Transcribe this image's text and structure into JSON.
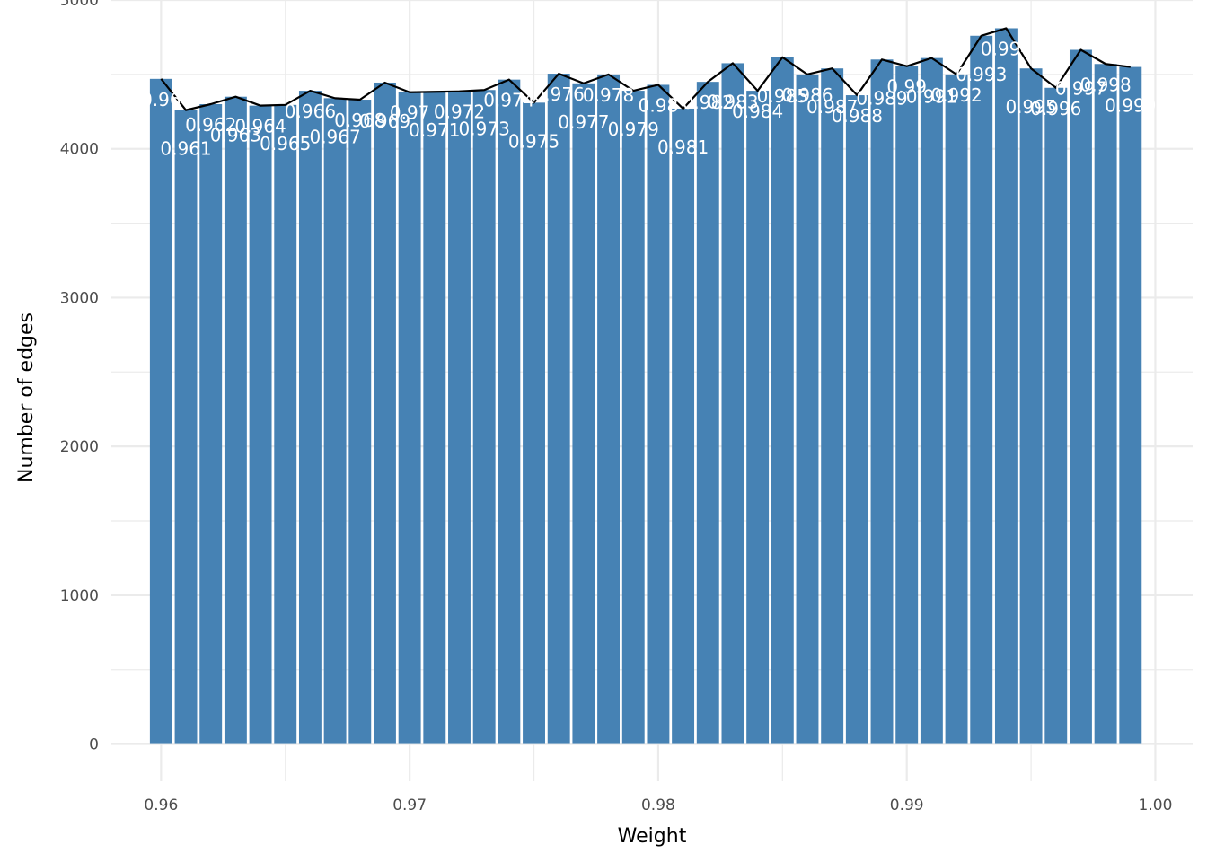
{
  "chart_data": {
    "type": "bar",
    "xlabel": "Weight",
    "ylabel": "Number of edges",
    "xlim": [
      0.958,
      1.0015
    ],
    "ylim": [
      -250,
      5000
    ],
    "x_ticks": [
      0.96,
      0.97,
      0.98,
      0.99,
      1.0
    ],
    "x_tick_labels": [
      "0.96",
      "0.97",
      "0.98",
      "0.99",
      "1.00"
    ],
    "y_ticks": [
      0,
      1000,
      2000,
      3000,
      4000,
      5000
    ],
    "y_tick_labels": [
      "0",
      "1000",
      "2000",
      "3000",
      "4000",
      "5000"
    ],
    "grid": true,
    "bar_color": "#4682B4",
    "line_color": "#000000",
    "bin_width": 0.001,
    "x": [
      0.96,
      0.961,
      0.962,
      0.963,
      0.964,
      0.965,
      0.966,
      0.967,
      0.968,
      0.969,
      0.97,
      0.971,
      0.972,
      0.973,
      0.974,
      0.975,
      0.976,
      0.977,
      0.978,
      0.979,
      0.98,
      0.981,
      0.982,
      0.983,
      0.984,
      0.985,
      0.986,
      0.987,
      0.988,
      0.989,
      0.99,
      0.991,
      0.992,
      0.993,
      0.994,
      0.995,
      0.996,
      0.997,
      0.998,
      0.999
    ],
    "values": [
      4470,
      4260,
      4300,
      4350,
      4290,
      4295,
      4390,
      4340,
      4330,
      4445,
      4380,
      4383,
      4386,
      4395,
      4465,
      4310,
      4505,
      4440,
      4500,
      4390,
      4430,
      4270,
      4450,
      4575,
      4390,
      4615,
      4500,
      4540,
      4360,
      4600,
      4555,
      4610,
      4500,
      4760,
      4810,
      4540,
      4410,
      4665,
      4570,
      4550
    ],
    "bar_labels": [
      "0.96",
      "0.961",
      "0.962",
      "0.963",
      "0.964",
      "0.965",
      "0.966",
      "0.967",
      "0.968",
      "0.969",
      "0.97",
      "0.971",
      "0.972",
      "0.973",
      "0.974",
      "0.975",
      "0.976",
      "0.977",
      "0.978",
      "0.979",
      "0.98",
      "0.981",
      "0.982",
      "0.983",
      "0.984",
      "0.985",
      "0.986",
      "0.987",
      "0.988",
      "0.989",
      "0.99",
      "0.991",
      "0.992",
      "0.993",
      "0.994",
      "0.995",
      "0.996",
      "0.997",
      "0.998",
      "0.999"
    ]
  }
}
